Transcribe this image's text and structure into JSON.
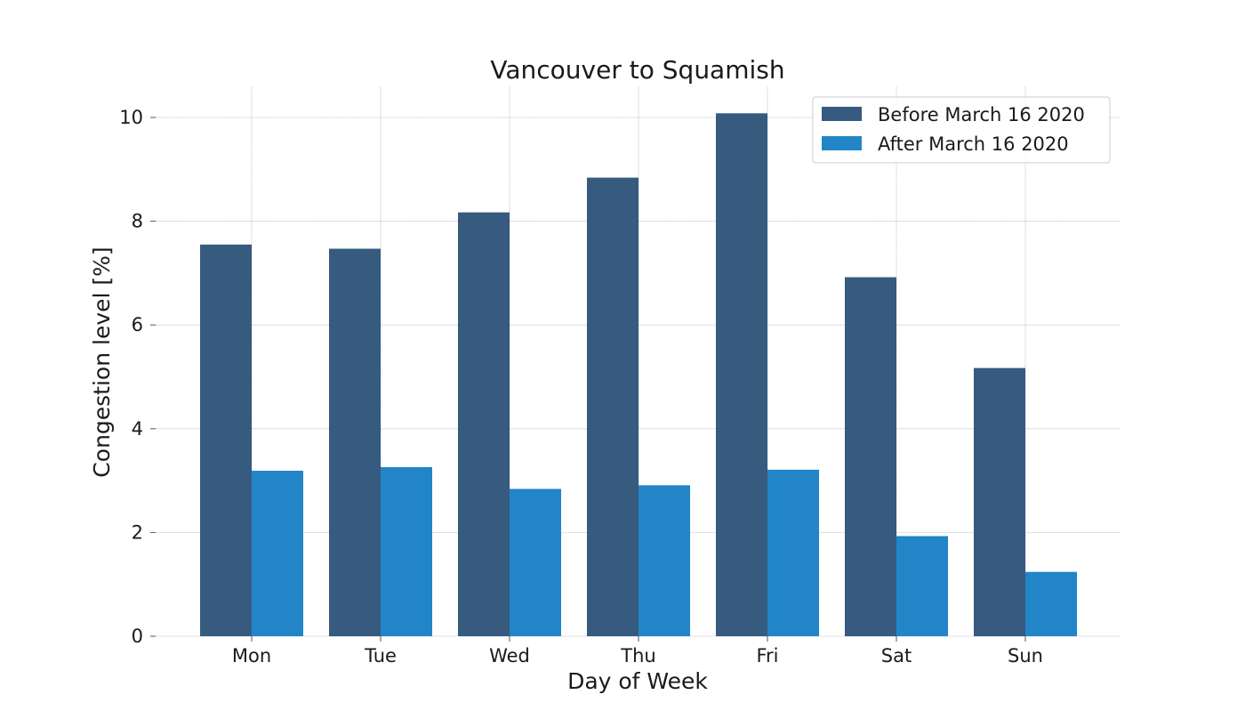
{
  "chart_data": {
    "type": "bar",
    "title": "Vancouver to Squamish",
    "xlabel": "Day of Week",
    "ylabel": "Congestion level [%]",
    "categories": [
      "Mon",
      "Tue",
      "Wed",
      "Thu",
      "Fri",
      "Sat",
      "Sun"
    ],
    "series": [
      {
        "name": "Before March 16 2020",
        "color": "#375a7f",
        "values": [
          7.55,
          7.47,
          8.17,
          8.84,
          10.08,
          6.92,
          5.17
        ]
      },
      {
        "name": "After March 16 2020",
        "color": "#2185c8",
        "values": [
          3.19,
          3.26,
          2.84,
          2.91,
          3.21,
          1.93,
          1.24
        ]
      }
    ],
    "ylim": [
      0,
      10.6
    ],
    "yticks": [
      0,
      2,
      4,
      6,
      8,
      10
    ],
    "grid": true,
    "legend_position": "top-right"
  }
}
